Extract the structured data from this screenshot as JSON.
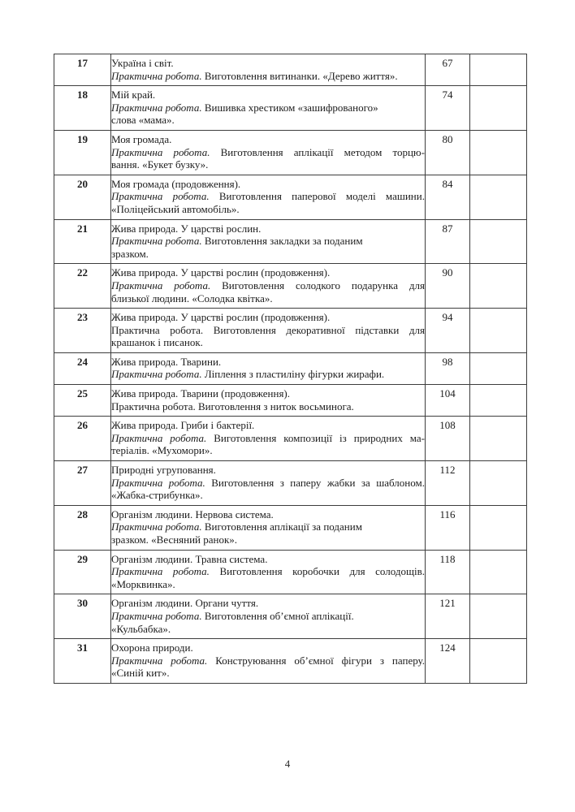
{
  "page": {
    "number": "4"
  },
  "table": {
    "practical_label": "Практична робота.",
    "rows": [
      {
        "num": "17",
        "title": "Україна і світ.",
        "label_italic": true,
        "practical_lines": [
          "Виготовлення витинанки. «Дерево життя»."
        ],
        "justified": false,
        "page": "67"
      },
      {
        "num": "18",
        "title": "Мій край.",
        "label_italic": true,
        "practical_lines": [
          "Вишивка хрестиком «зашифрованого»",
          "слова «мама»."
        ],
        "justified": false,
        "page": "74"
      },
      {
        "num": "19",
        "title": "Моя громада.",
        "label_italic": true,
        "practical_lines": [
          "Виготовлення аплікації методом торцю-",
          "вання. «Букет бузку»."
        ],
        "justified": true,
        "page": "80"
      },
      {
        "num": "20",
        "title": "Моя громада (продовження).",
        "label_italic": true,
        "practical_lines": [
          "Виготовлення паперової моделі машини.",
          "«Поліцейський автомобіль»."
        ],
        "justified": true,
        "page": "84"
      },
      {
        "num": "21",
        "title": "Жива природа. У царстві рослин.",
        "label_italic": true,
        "practical_lines": [
          "Виготовлення закладки за поданим",
          "зразком."
        ],
        "justified": false,
        "page": "87"
      },
      {
        "num": "22",
        "title": "Жива природа. У царстві рослин (продовження).",
        "label_italic": true,
        "practical_lines": [
          "Виготовлення солодкого подарунка для",
          "близької людини. «Солодка квітка»."
        ],
        "justified": true,
        "page": "90"
      },
      {
        "num": "23",
        "title": "Жива природа. У царстві рослин (продовження).",
        "label_italic": false,
        "practical_lines": [
          "Виготовлення декоративної підставки для",
          "крашанок і писанок."
        ],
        "justified": true,
        "page": "94"
      },
      {
        "num": "24",
        "title": "Жива природа. Тварини.",
        "label_italic": true,
        "practical_lines": [
          "Ліплення з пластиліну фігурки жирафи."
        ],
        "justified": false,
        "page": "98"
      },
      {
        "num": "25",
        "title": "Жива природа. Тварини (продовження).",
        "label_italic": false,
        "practical_lines": [
          "Виготовлення з ниток восьминога."
        ],
        "justified": false,
        "page": "104"
      },
      {
        "num": "26",
        "title": "Жива природа. Гриби і бактерії.",
        "label_italic": true,
        "practical_lines": [
          "Виготовлення композиції із природних ма-",
          "теріалів. «Мухомори»."
        ],
        "justified": true,
        "page": "108"
      },
      {
        "num": "27",
        "title": "Природні угруповання.",
        "label_italic": true,
        "practical_lines": [
          "Виготовлення з паперу жабки за шаблоном.",
          "«Жабка-стрибунка»."
        ],
        "justified": true,
        "page": "112"
      },
      {
        "num": "28",
        "title": "Організм людини. Нервова система.",
        "label_italic": true,
        "practical_lines": [
          "Виготовлення аплікації за поданим",
          "зразком. «Весняний ранок»."
        ],
        "justified": false,
        "page": "116"
      },
      {
        "num": "29",
        "title": "Організм людини. Травна система.",
        "label_italic": true,
        "practical_lines": [
          "Виготовлення коробочки для солодощів.",
          "«Морквинка»."
        ],
        "justified": true,
        "page": "118"
      },
      {
        "num": "30",
        "title": "Організм людини. Органи чуття.",
        "label_italic": true,
        "practical_lines": [
          "Виготовлення об’ємної аплікації.",
          "«Кульбабка»."
        ],
        "justified": false,
        "page": "121"
      },
      {
        "num": "31",
        "title": "Охорона природи.",
        "label_italic": true,
        "practical_lines": [
          "Конструювання об’ємної фігури з паперу.",
          "«Синій кит»."
        ],
        "justified": true,
        "page": "124"
      }
    ]
  }
}
